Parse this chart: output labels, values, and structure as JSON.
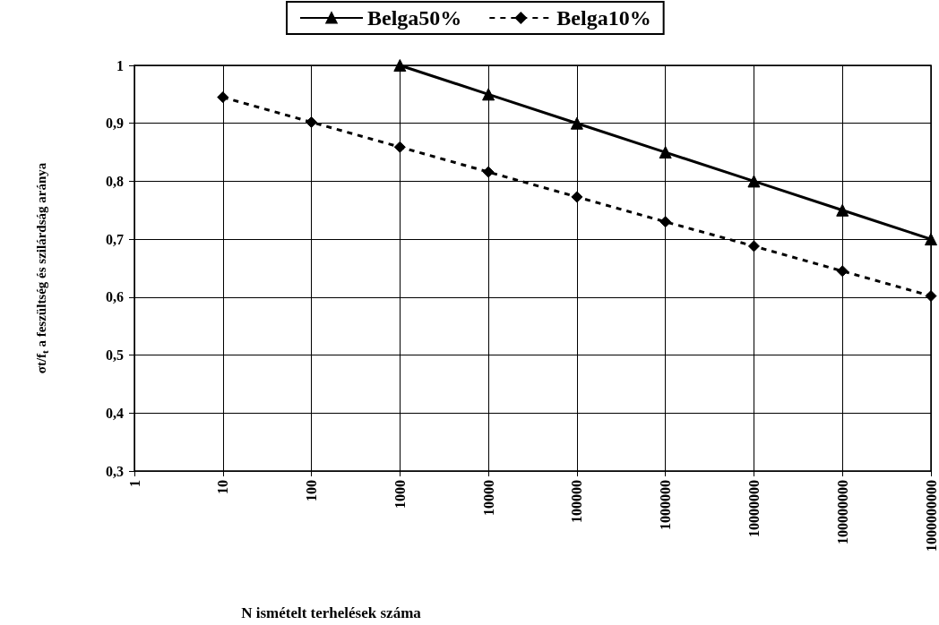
{
  "chart_data": {
    "type": "line",
    "xlabel": "N ismételt terhelések száma",
    "ylabel": "σt/f$_{t}$ a feszültség és szilárdság aránya",
    "categories": [
      "1",
      "10",
      "100",
      "1000",
      "10000",
      "100000",
      "1000000",
      "10000000",
      "100000000",
      "1000000000"
    ],
    "series": [
      {
        "name": "Belga50%",
        "color": "#000000",
        "marker": "triangle",
        "line_style": "solid",
        "values": [
          null,
          null,
          null,
          1.0,
          0.95,
          0.9,
          0.85,
          0.8,
          0.75,
          0.7
        ]
      },
      {
        "name": "Belga10%",
        "color": "#000000",
        "marker": "diamond",
        "line_style": "dashed",
        "values": [
          null,
          0.945,
          0.902,
          0.859,
          0.816,
          0.773,
          0.73,
          0.688,
          0.645,
          0.602
        ]
      }
    ],
    "ylim": [
      0.3,
      1
    ],
    "yticks": [
      {
        "value": 0.3,
        "label": "0,3"
      },
      {
        "value": 0.4,
        "label": "0,4"
      },
      {
        "value": 0.5,
        "label": "0,5"
      },
      {
        "value": 0.6,
        "label": "0,6"
      },
      {
        "value": 0.7,
        "label": "0,7"
      },
      {
        "value": 0.8,
        "label": "0,8"
      },
      {
        "value": 0.9,
        "label": "0,9"
      },
      {
        "value": 1,
        "label": "1"
      }
    ],
    "grid": true,
    "legend": "top"
  }
}
